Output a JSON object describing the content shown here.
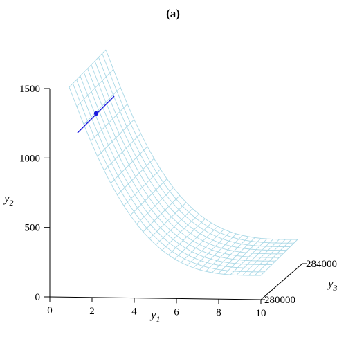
{
  "chart_data": {
    "type": "surface",
    "title": "(a)",
    "axes": {
      "y1": {
        "label": "y",
        "subscript": "1",
        "ticks": [
          "0",
          "2",
          "4",
          "6",
          "8",
          "10"
        ],
        "range": [
          0,
          10
        ]
      },
      "y2": {
        "label": "y",
        "subscript": "2",
        "ticks": [
          "0",
          "500",
          "1000",
          "1500"
        ],
        "range": [
          0,
          1500
        ]
      },
      "y3": {
        "label": "y",
        "subscript": "3",
        "ticks": [
          "280000",
          "284000"
        ],
        "range": [
          280000,
          284000
        ]
      }
    },
    "surface": {
      "description": "y2 decreases as y1 increases; surface spans y1 ≈ 1–10, y3 ≈ 280000–284000",
      "y1_values": [
        1,
        1.5,
        2,
        2.5,
        3,
        3.5,
        4,
        5,
        6,
        7,
        8,
        9,
        10
      ],
      "y2_values": [
        1500,
        1180,
        980,
        820,
        700,
        610,
        540,
        430,
        360,
        310,
        270,
        240,
        215
      ],
      "y3_range": [
        280000,
        284000
      ],
      "color": "#a9d8e6"
    },
    "highlight_line": {
      "y1": 2.2,
      "y2_range": [
        1250,
        1420
      ],
      "color": "#1a1adf"
    },
    "highlight_point": {
      "y1": 2.2,
      "y2": 1310,
      "color": "#1a1adf"
    }
  }
}
